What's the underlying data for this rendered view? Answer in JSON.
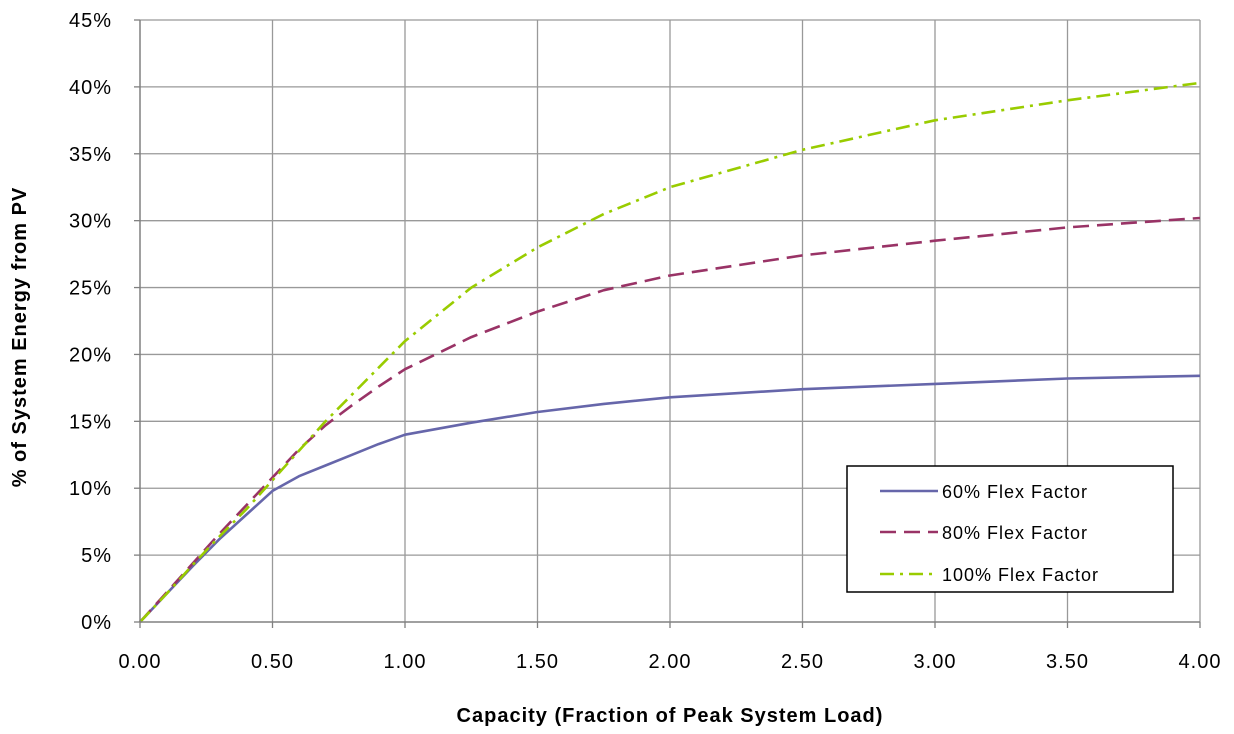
{
  "chart_data": {
    "type": "line",
    "title": "",
    "xlabel": "Capacity (Fraction of Peak System Load)",
    "ylabel": "% of System Energy from PV",
    "xlim": [
      0,
      4
    ],
    "ylim": [
      0,
      45
    ],
    "x_ticks": [
      "0.00",
      "0.50",
      "1.00",
      "1.50",
      "2.00",
      "2.50",
      "3.00",
      "3.50",
      "4.00"
    ],
    "y_ticks": [
      "0%",
      "5%",
      "10%",
      "15%",
      "20%",
      "25%",
      "30%",
      "35%",
      "40%",
      "45%"
    ],
    "grid": true,
    "legend_position": "bottom-right",
    "series": [
      {
        "name": "60% Flex Factor",
        "color": "#6666aa",
        "dash": "solid",
        "x": [
          0,
          0.1,
          0.2,
          0.3,
          0.4,
          0.5,
          0.6,
          0.7,
          0.8,
          0.9,
          1.0,
          1.25,
          1.5,
          1.75,
          2.0,
          2.5,
          3.0,
          3.5,
          4.0
        ],
        "y": [
          0,
          2.1,
          4.2,
          6.2,
          8.0,
          9.8,
          10.9,
          11.7,
          12.5,
          13.3,
          14.0,
          14.9,
          15.7,
          16.3,
          16.8,
          17.4,
          17.8,
          18.2,
          18.4
        ]
      },
      {
        "name": "80% Flex Factor",
        "color": "#993366",
        "dash": "long-dash",
        "x": [
          0,
          0.1,
          0.2,
          0.3,
          0.4,
          0.5,
          0.6,
          0.7,
          0.8,
          0.9,
          1.0,
          1.25,
          1.5,
          1.75,
          2.0,
          2.5,
          3.0,
          3.5,
          4.0
        ],
        "y": [
          0,
          2.2,
          4.4,
          6.6,
          8.7,
          10.8,
          12.9,
          14.7,
          16.2,
          17.6,
          18.9,
          21.3,
          23.2,
          24.8,
          25.9,
          27.4,
          28.5,
          29.5,
          30.2
        ]
      },
      {
        "name": "100% Flex Factor",
        "color": "#99cc00",
        "dash": "dash-dot",
        "x": [
          0,
          0.1,
          0.2,
          0.3,
          0.4,
          0.5,
          0.6,
          0.7,
          0.8,
          0.9,
          1.0,
          1.25,
          1.5,
          1.75,
          2.0,
          2.5,
          3.0,
          3.5,
          4.0
        ],
        "y": [
          0,
          2.1,
          4.3,
          6.4,
          8.4,
          10.6,
          12.8,
          15.0,
          17.0,
          19.0,
          21.0,
          25.0,
          28.0,
          30.5,
          32.5,
          35.3,
          37.5,
          39.0,
          40.3
        ]
      }
    ]
  }
}
